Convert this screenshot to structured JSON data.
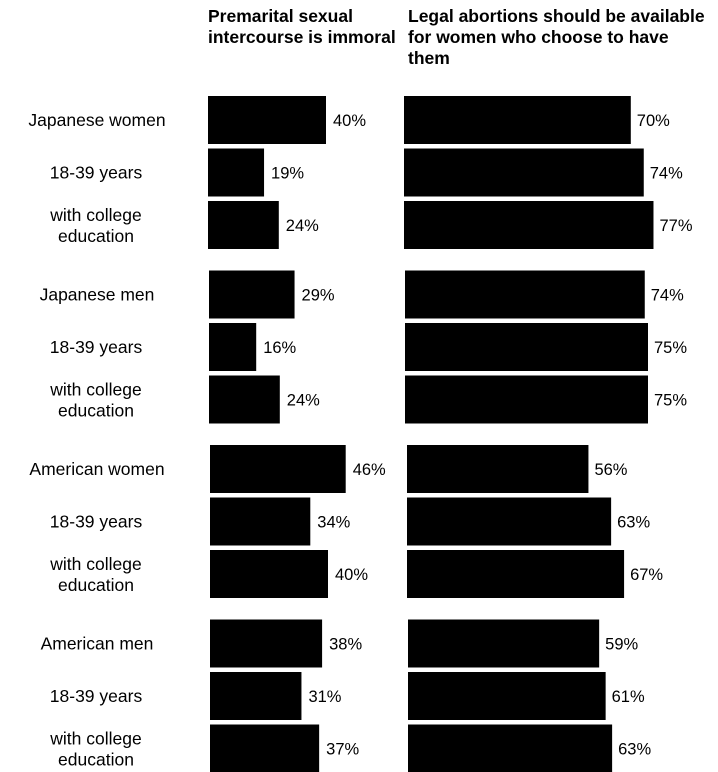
{
  "chart_data": {
    "type": "bar",
    "orientation": "horizontal",
    "unit": "%",
    "categories": [
      "Japanese women",
      "18-39 years",
      "with college education",
      "Japanese men",
      "18-39 years",
      "with college education",
      "American women",
      "18-39 years",
      "with college education",
      "American men",
      "18-39 years",
      "with college education"
    ],
    "series": [
      {
        "name": "Premarital sexual intercourse is immoral",
        "values": [
          40,
          19,
          24,
          29,
          16,
          24,
          46,
          34,
          40,
          38,
          31,
          37
        ]
      },
      {
        "name": "Legal abortions should be available for women who choose to have them",
        "values": [
          70,
          74,
          77,
          74,
          75,
          75,
          56,
          63,
          67,
          59,
          61,
          63
        ]
      }
    ],
    "bar_color": "#000000"
  }
}
